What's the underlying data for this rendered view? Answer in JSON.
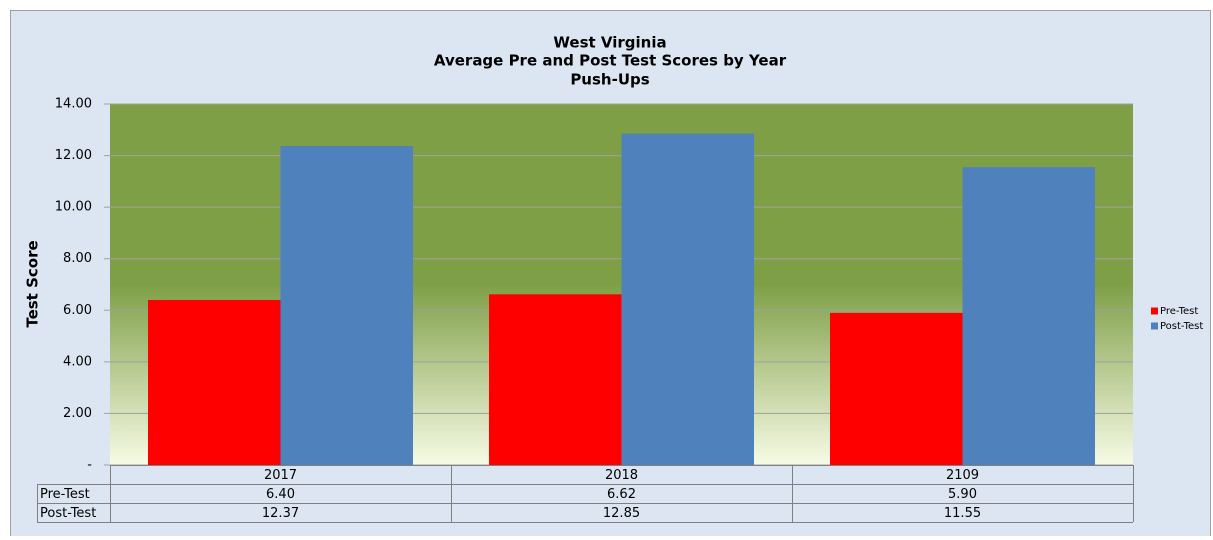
{
  "chart_data": {
    "type": "bar",
    "title": [
      "West Virginia",
      "Average Pre and Post Test Scores by Year",
      "Push-Ups"
    ],
    "ylabel": "Test Score",
    "categories": [
      "2017",
      "2018",
      "2109"
    ],
    "series": [
      {
        "name": "Pre-Test",
        "color": "#ff0000",
        "values": [
          6.4,
          6.62,
          5.9
        ],
        "value_labels": [
          "6.40",
          "6.62",
          "5.90"
        ]
      },
      {
        "name": "Post-Test",
        "color": "#4f81bd",
        "values": [
          12.37,
          12.85,
          11.55
        ],
        "value_labels": [
          "12.37",
          "12.85",
          "11.55"
        ]
      }
    ],
    "ylim": [
      0,
      14
    ],
    "yticks": [
      {
        "value": 0,
        "label": "-"
      },
      {
        "value": 2,
        "label": "2.00"
      },
      {
        "value": 4,
        "label": "4.00"
      },
      {
        "value": 6,
        "label": "6.00"
      },
      {
        "value": 8,
        "label": "8.00"
      },
      {
        "value": 10,
        "label": "10.00"
      },
      {
        "value": 12,
        "label": "12.00"
      },
      {
        "value": 14,
        "label": "14.00"
      }
    ],
    "grid": true,
    "legend": "right"
  }
}
